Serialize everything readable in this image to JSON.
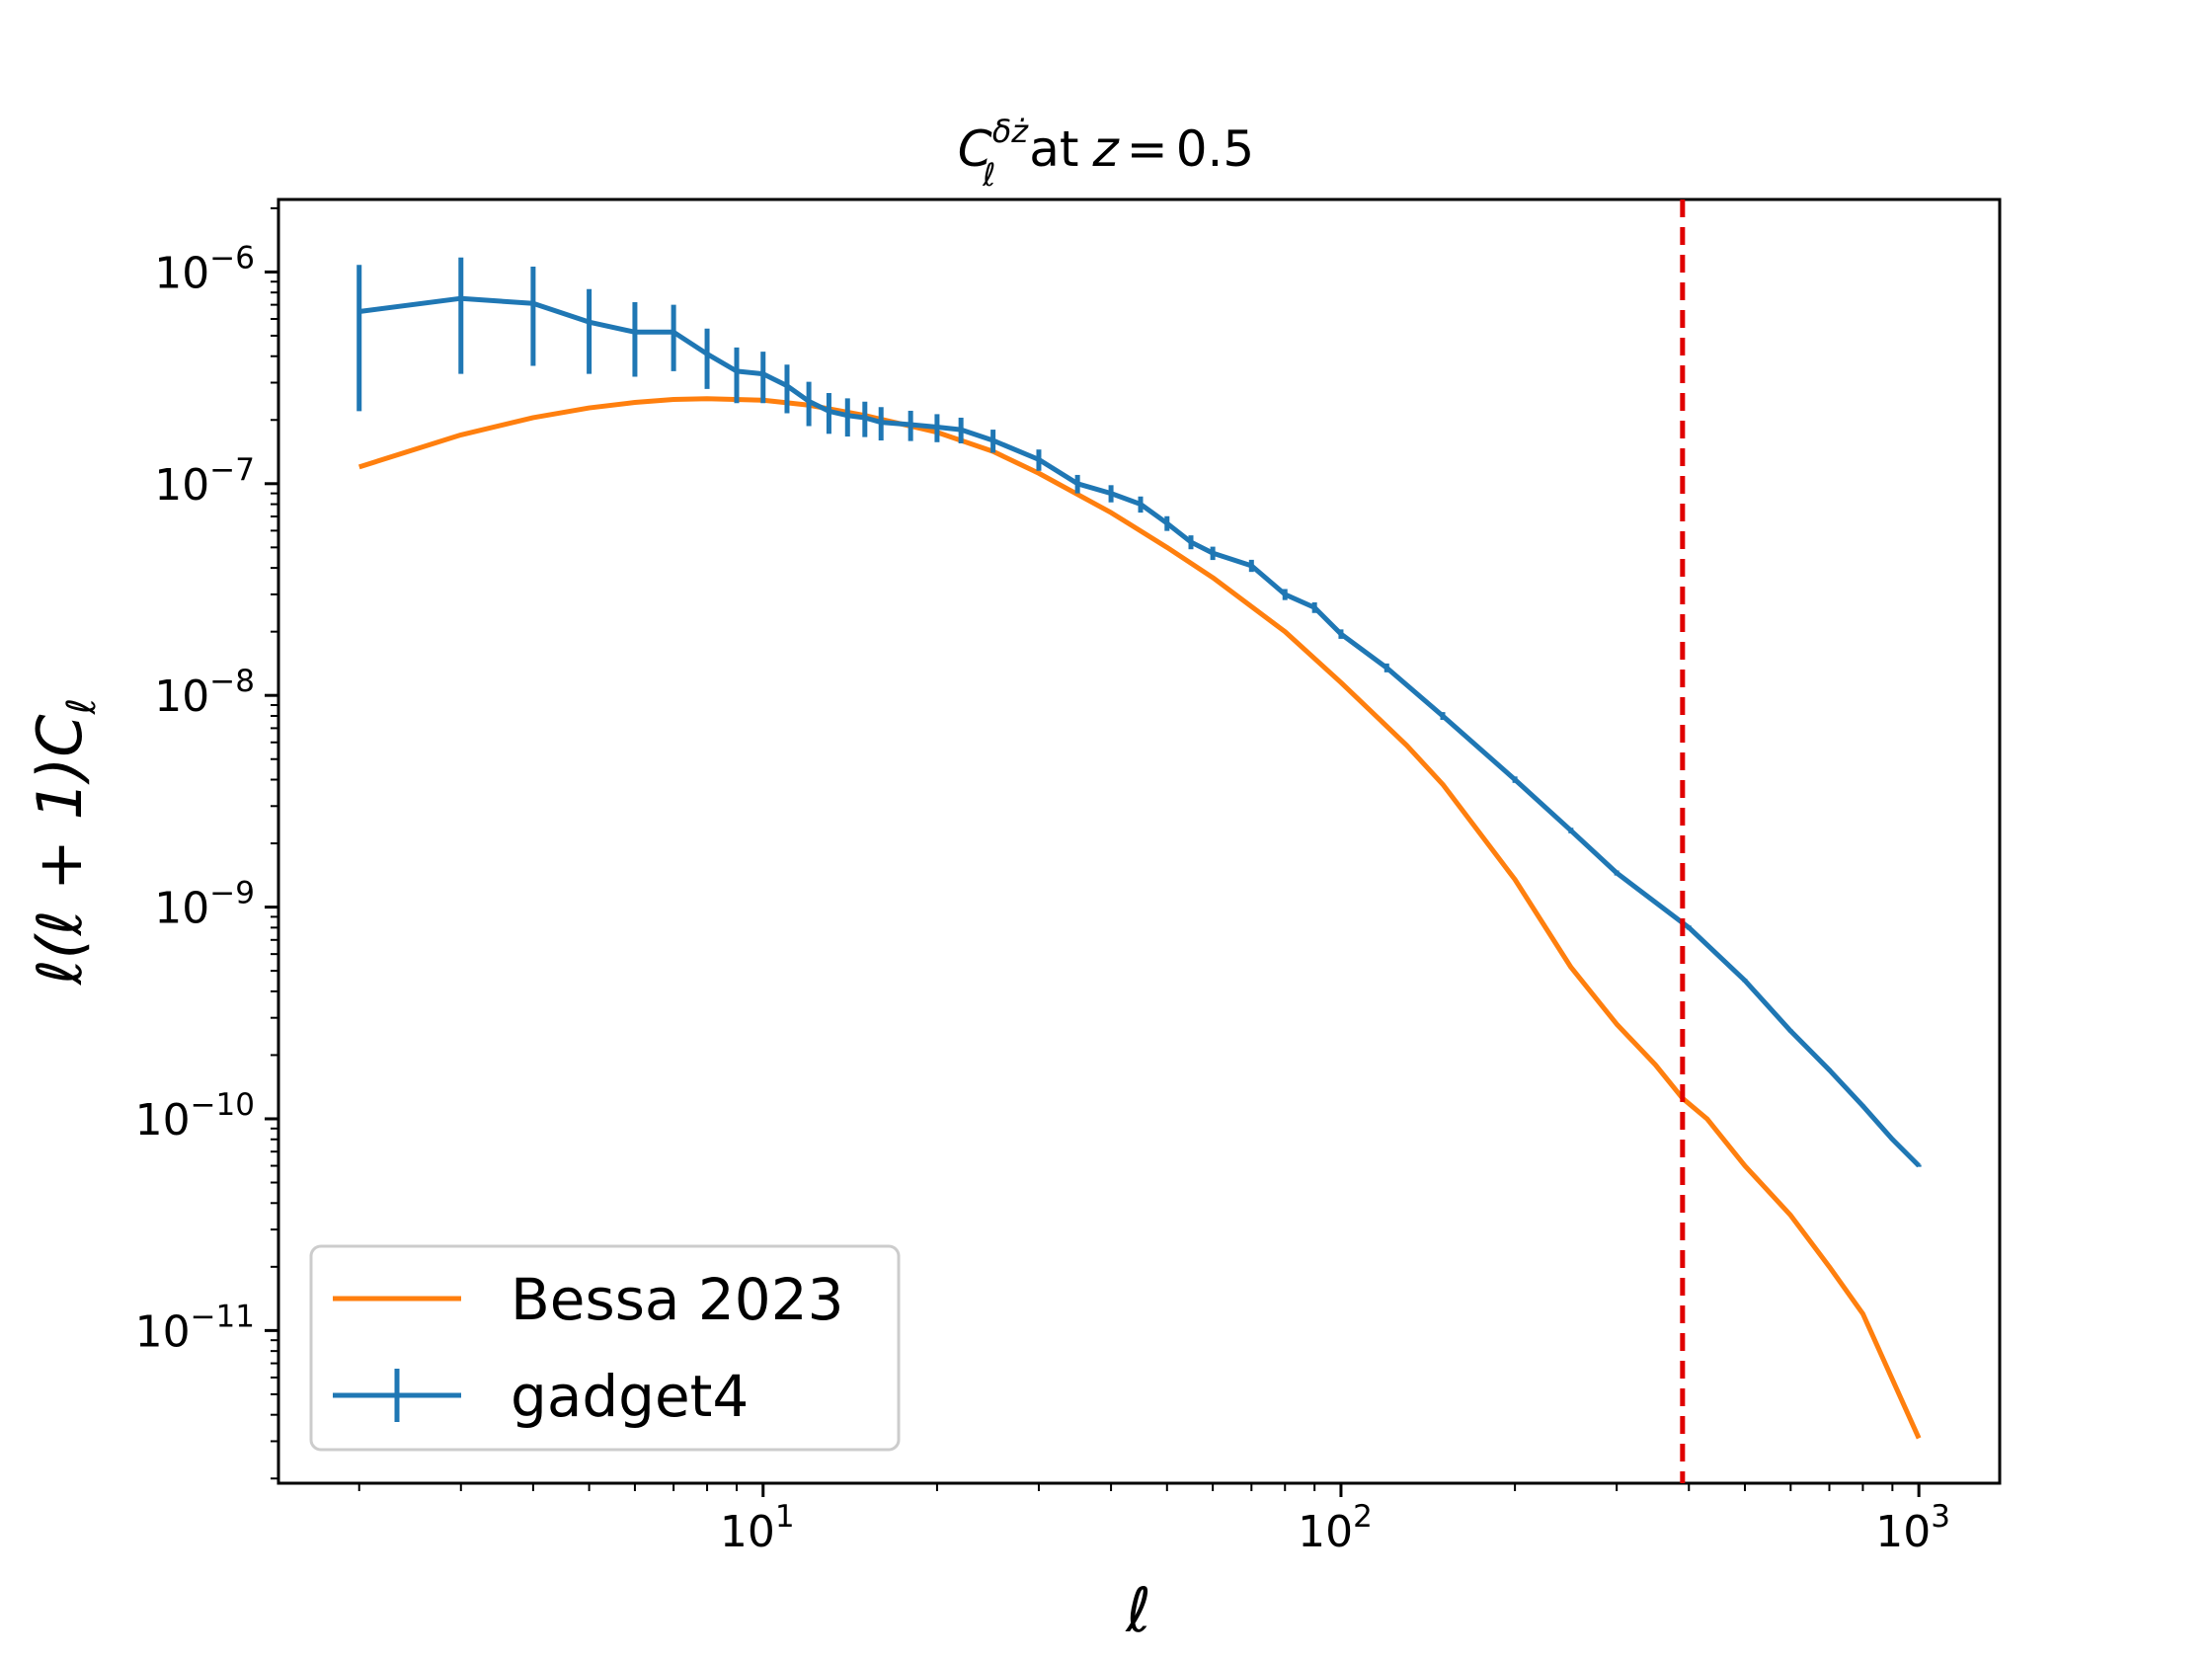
{
  "chart_data": {
    "type": "line",
    "title": {
      "symbol": "C",
      "subscript": "ℓ",
      "superscript": "δż",
      "text": "at",
      "variable": "z",
      "equals": "=",
      "value": "0.5"
    },
    "xlabel": "ℓ",
    "ylabel": "ℓ(ℓ + 1)C",
    "ylabel_subscript": "ℓ",
    "xscale": "log",
    "yscale": "log",
    "xlim": [
      1.45,
      1380
    ],
    "ylim": [
      1.9e-12,
      2.2e-06
    ],
    "x_ticks": [
      {
        "value": 10,
        "base": "10",
        "exp": "1"
      },
      {
        "value": 100,
        "base": "10",
        "exp": "2"
      },
      {
        "value": 1000,
        "base": "10",
        "exp": "3"
      }
    ],
    "y_ticks": [
      {
        "value": 1e-06,
        "base": "10",
        "exp": "−6"
      },
      {
        "value": 1e-07,
        "base": "10",
        "exp": "−7"
      },
      {
        "value": 1e-08,
        "base": "10",
        "exp": "−8"
      },
      {
        "value": 1e-09,
        "base": "10",
        "exp": "−9"
      },
      {
        "value": 1e-10,
        "base": "10",
        "exp": "−10"
      },
      {
        "value": 1e-11,
        "base": "10",
        "exp": "−11"
      }
    ],
    "vline": {
      "x": 390,
      "color": "#e00000",
      "style": "dashed"
    },
    "series": [
      {
        "name": "Bessa 2023",
        "color": "#ff7f0e",
        "style": "line",
        "x": [
          2,
          3,
          4,
          5,
          6,
          7,
          8,
          10,
          12,
          15,
          20,
          25,
          30,
          40,
          50,
          60,
          80,
          100,
          130,
          150,
          200,
          250,
          300,
          350,
          390,
          430,
          500,
          600,
          700,
          800,
          1000
        ],
        "y": [
          1.2e-07,
          1.7e-07,
          2.05e-07,
          2.28e-07,
          2.42e-07,
          2.5e-07,
          2.52e-07,
          2.48e-07,
          2.35e-07,
          2.1e-07,
          1.75e-07,
          1.42e-07,
          1.12e-07,
          7.3e-08,
          5e-08,
          3.6e-08,
          2e-08,
          1.15e-08,
          5.8e-09,
          3.8e-09,
          1.35e-09,
          5.2e-10,
          2.8e-10,
          1.8e-10,
          1.25e-10,
          1e-10,
          6e-11,
          3.5e-11,
          2e-11,
          1.2e-11,
          3.1e-12
        ]
      },
      {
        "name": "gadget4",
        "color": "#1f77b4",
        "style": "errorbar",
        "x": [
          2,
          3,
          4,
          5,
          6,
          7,
          8,
          9,
          10,
          11,
          12,
          13,
          14,
          15,
          16,
          18,
          20,
          22,
          25,
          30,
          35,
          40,
          45,
          50,
          55,
          60,
          70,
          80,
          90,
          100,
          120,
          150,
          200,
          250,
          300,
          400,
          500,
          600,
          700,
          800,
          900,
          1000
        ],
        "y": [
          6.5e-07,
          7.5e-07,
          7.1e-07,
          5.8e-07,
          5.2e-07,
          5.2e-07,
          4.1e-07,
          3.4e-07,
          3.3e-07,
          2.9e-07,
          2.45e-07,
          2.2e-07,
          2.1e-07,
          2.05e-07,
          1.95e-07,
          1.9e-07,
          1.85e-07,
          1.8e-07,
          1.6e-07,
          1.3e-07,
          1e-07,
          9e-08,
          8e-08,
          6.5e-08,
          5.3e-08,
          4.7e-08,
          4.1e-08,
          3e-08,
          2.6e-08,
          1.95e-08,
          1.35e-08,
          8e-09,
          4e-09,
          2.3e-09,
          1.45e-09,
          8e-10,
          4.5e-10,
          2.6e-10,
          1.7e-10,
          1.15e-10,
          8e-11,
          6e-11
        ],
        "err": [
          4.3e-07,
          4.2e-07,
          3.5e-07,
          2.5e-07,
          2e-07,
          1.8e-07,
          1.3e-07,
          1e-07,
          9e-08,
          7.5e-08,
          5.8e-08,
          4.8e-08,
          4.3e-08,
          3.9e-08,
          3.5e-08,
          3.1e-08,
          2.8e-08,
          2.5e-08,
          2e-08,
          1.5e-08,
          1e-08,
          8.4e-09,
          7e-09,
          5.2e-09,
          4e-09,
          3.4e-09,
          2.7e-09,
          1.8e-09,
          1.5e-09,
          1e-09,
          6.5e-10,
          3.4e-10,
          1.4e-10,
          7e-11,
          4e-11,
          1.8e-11,
          8e-12,
          4e-12,
          2.4e-12,
          1.5e-12,
          1e-12,
          7e-13
        ]
      }
    ],
    "legend": {
      "location": "lower-left",
      "entries": [
        "Bessa 2023",
        "gadget4"
      ]
    }
  }
}
